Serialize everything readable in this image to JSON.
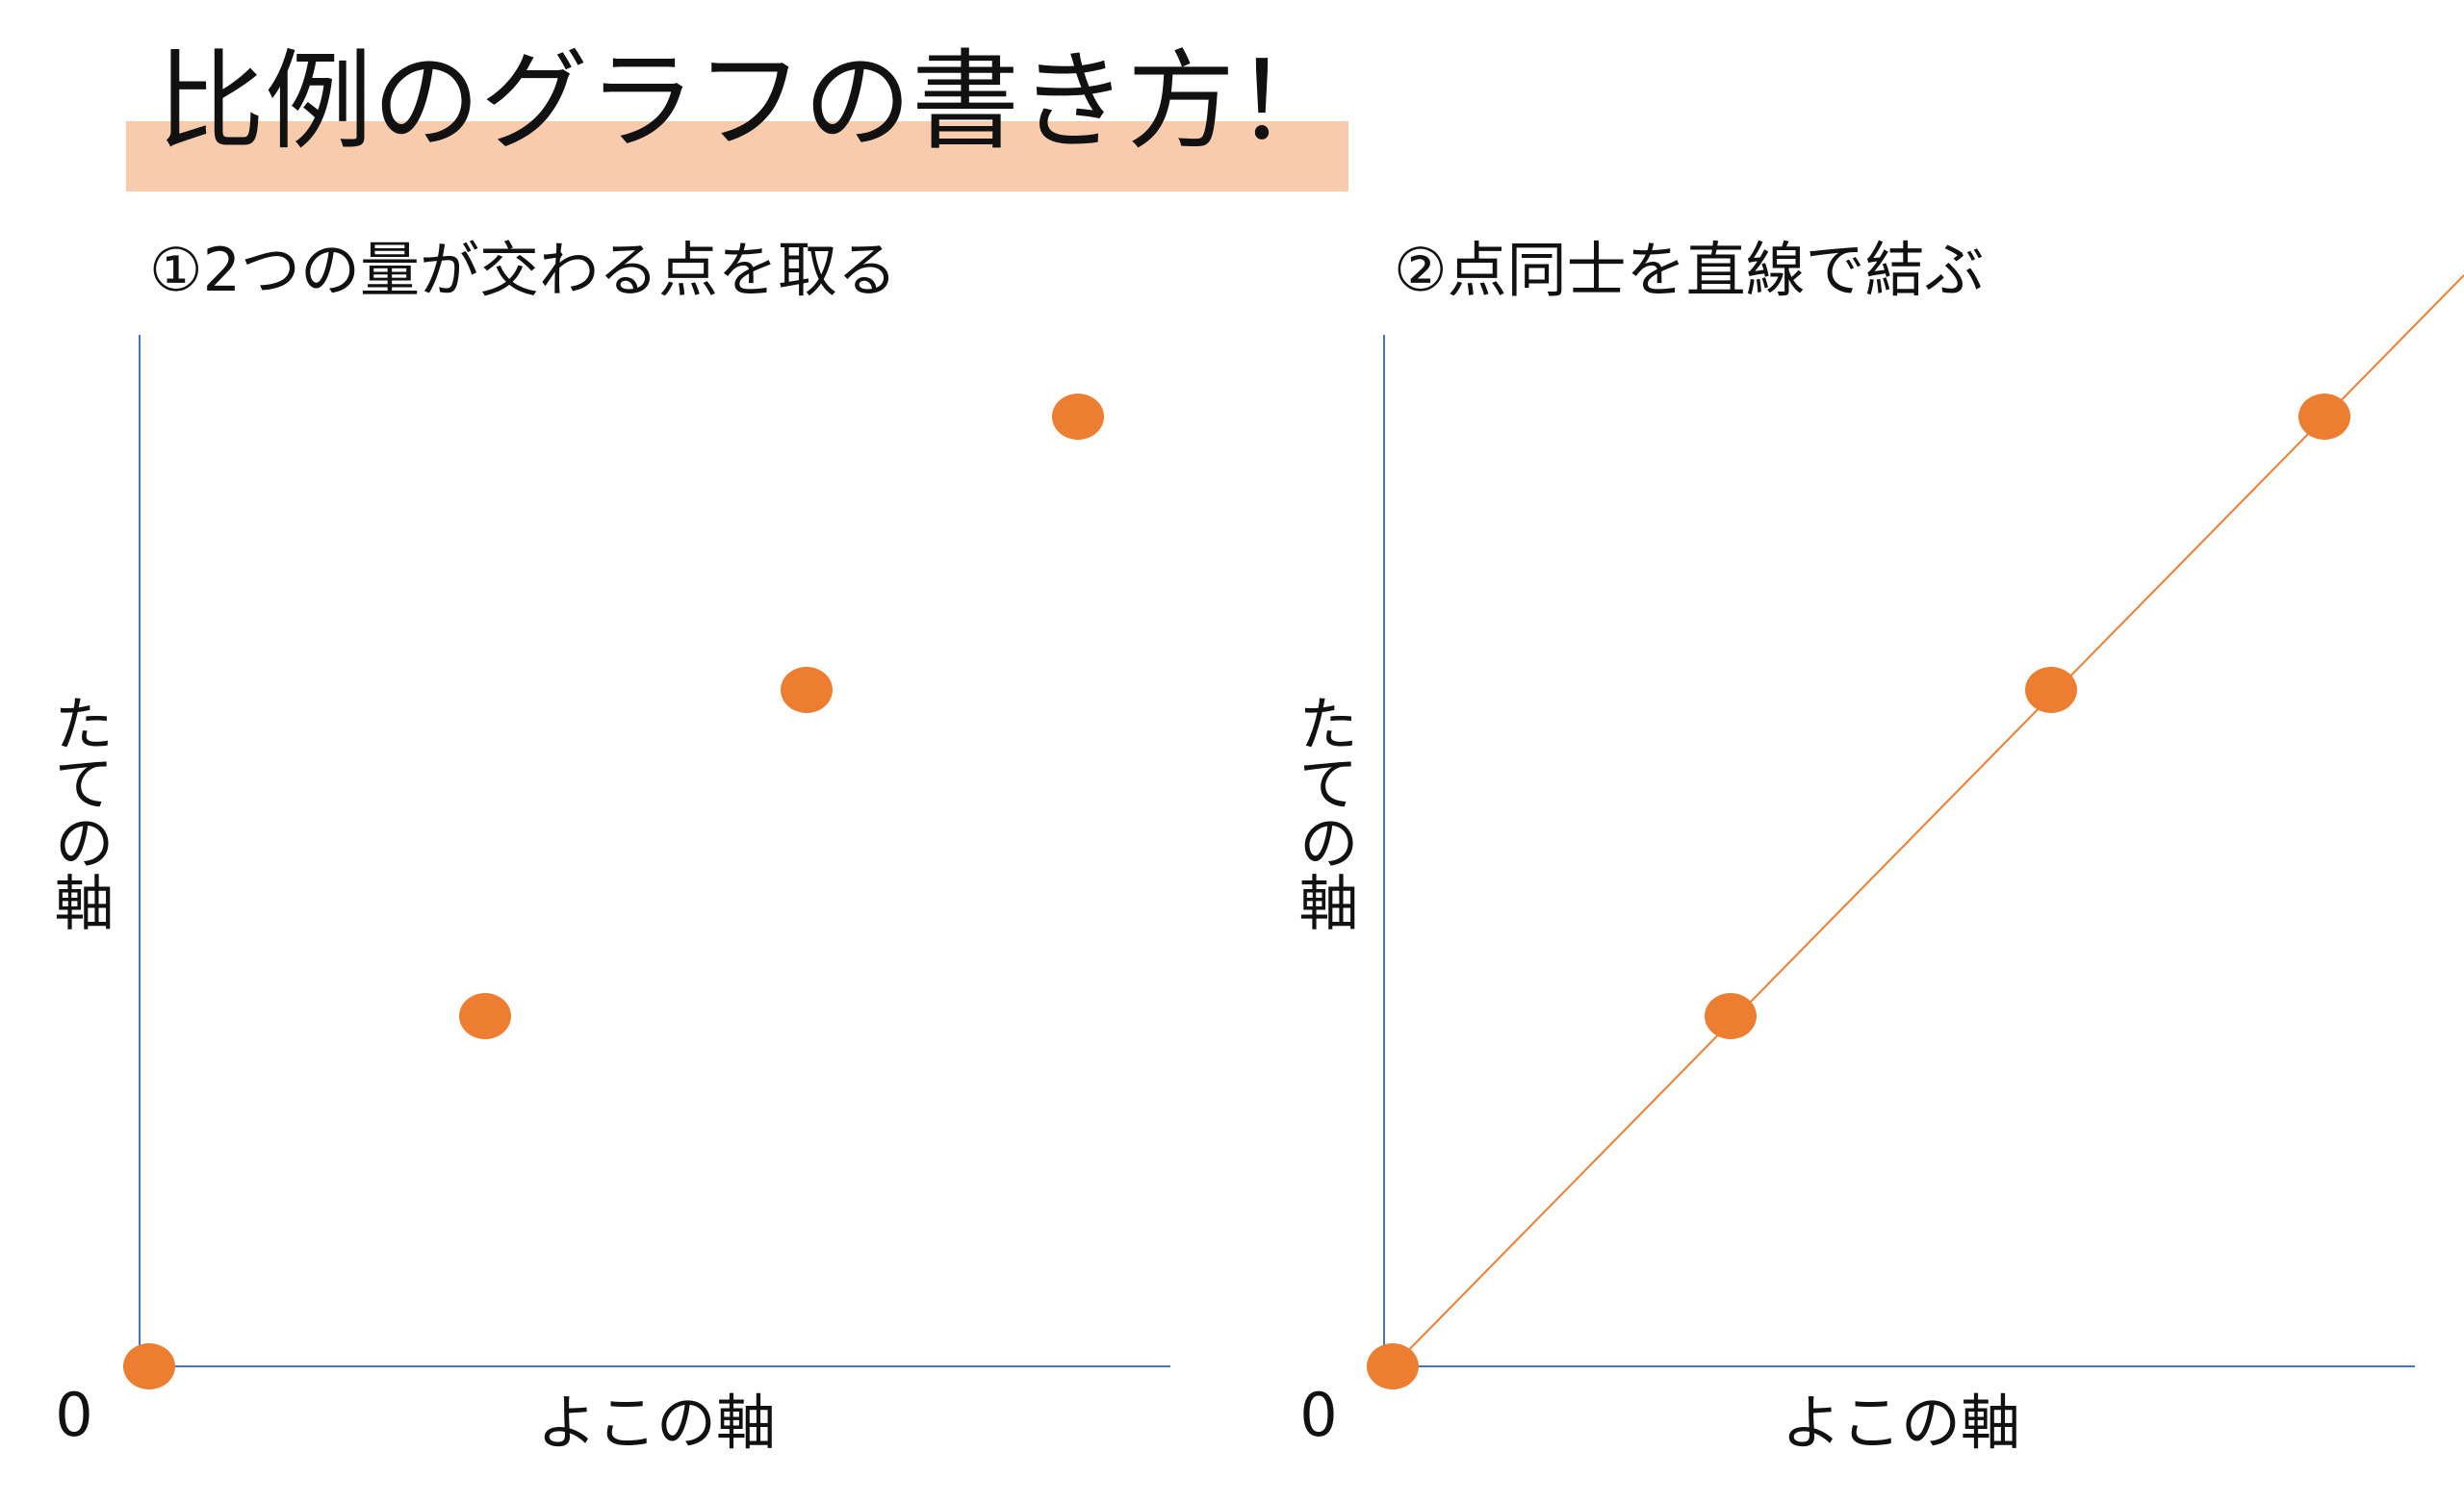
{
  "header": {
    "title": "比例のグラフの書き方！"
  },
  "panels": [
    {
      "step": "①2つの量が交わる点を取る",
      "y_axis_label": "たての軸",
      "x_axis_label": "よこの軸",
      "origin_label": "0"
    },
    {
      "step": "②点同士を直線で結ぶ",
      "y_axis_label": "たての軸",
      "x_axis_label": "よこの軸",
      "origin_label": "0"
    }
  ]
}
